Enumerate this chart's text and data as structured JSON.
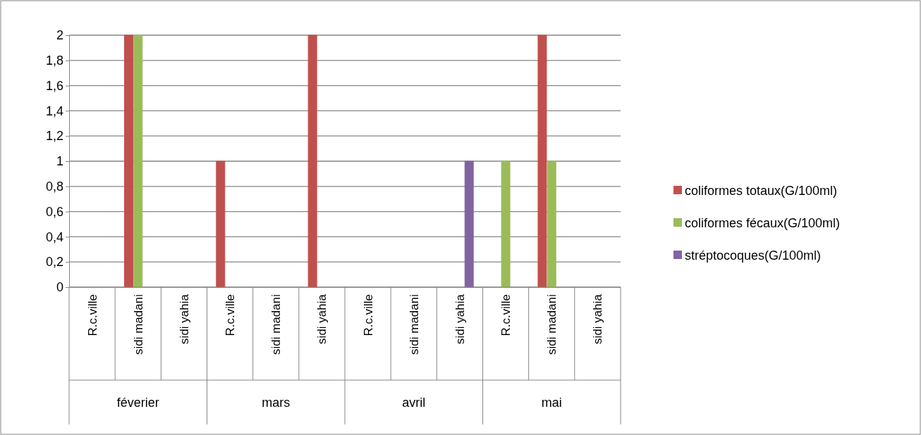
{
  "chart_data": {
    "type": "bar",
    "categories": [
      "R.c.ville",
      "sidi madani",
      "sidi yahia",
      "R.c.ville",
      "sidi madani",
      "sidi yahia",
      "R.c.ville",
      "sidi madani",
      "sidi yahia",
      "R.c.ville",
      "sidi madani",
      "sidi yahia"
    ],
    "annotations": [
      "féverier",
      "mars",
      "avril",
      "mai"
    ],
    "series": [
      {
        "name": "coliformes totaux(G/100ml)",
        "color": "#c0504d",
        "values": [
          0,
          2,
          0,
          1,
          0,
          2,
          0,
          0,
          0,
          0,
          2,
          0
        ]
      },
      {
        "name": "coliformes fécaux(G/100ml)",
        "color": "#9bbb59",
        "values": [
          0,
          2,
          0,
          0,
          0,
          0,
          0,
          0,
          0,
          1,
          1,
          0
        ]
      },
      {
        "name": "stréptocoques(G/100ml)",
        "color": "#8064a2",
        "values": [
          0,
          0,
          0,
          0,
          0,
          0,
          0,
          0,
          1,
          0,
          0,
          0
        ]
      }
    ],
    "ylim": [
      0,
      2
    ],
    "yticks": [
      0,
      {
        "value": 0.2,
        "label": "0,2"
      },
      {
        "value": 0.4,
        "label": "0,4"
      },
      {
        "value": 0.6,
        "label": "0,6"
      },
      {
        "value": 0.8,
        "label": "0,8"
      },
      1,
      {
        "value": 1.2,
        "label": "1,2"
      },
      {
        "value": 1.4,
        "label": "1,4"
      },
      {
        "value": 1.6,
        "label": "1,6"
      },
      {
        "value": 1.8,
        "label": "1,8"
      },
      2
    ],
    "grid": "y",
    "legend": "right"
  }
}
